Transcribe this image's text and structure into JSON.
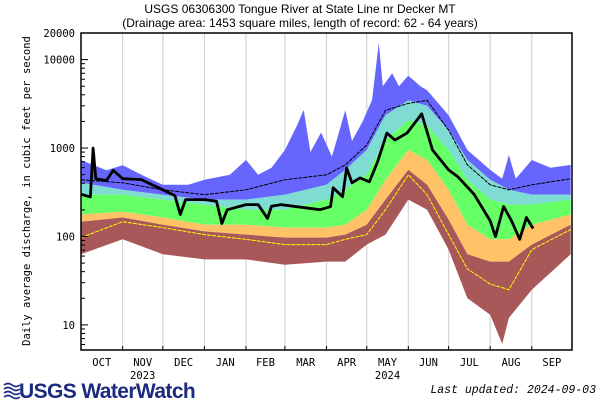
{
  "chart_data": {
    "type": "area",
    "title": "USGS 06306300 Tongue River at State Line nr Decker MT",
    "subtitle": "(Drainage area: 1453 square miles, length of record: 62 - 64 years)",
    "xlabel": "",
    "ylabel": "Daily average discharge, in cubic feet per second",
    "y_scale": "log",
    "ylim": [
      5.2,
      20000
    ],
    "xlim": [
      "2023-10-01",
      "2024-10-01"
    ],
    "y_ticks": [
      {
        "value": 20000,
        "label": "20000"
      },
      {
        "value": 10000,
        "label": "10000"
      },
      {
        "value": 1000,
        "label": "1000"
      },
      {
        "value": 100,
        "label": "100"
      },
      {
        "value": 10,
        "label": "10"
      }
    ],
    "x_ticks": [
      {
        "date": "2023-10-01",
        "label": "OCT"
      },
      {
        "date": "2023-11-01",
        "label": "NOV"
      },
      {
        "date": "2023-12-01",
        "label": "DEC"
      },
      {
        "date": "2024-01-01",
        "label": "JAN"
      },
      {
        "date": "2024-02-01",
        "label": "FEB"
      },
      {
        "date": "2024-03-01",
        "label": "MAR"
      },
      {
        "date": "2024-04-01",
        "label": "APR"
      },
      {
        "date": "2024-05-01",
        "label": "MAY"
      },
      {
        "date": "2024-06-01",
        "label": "JUN"
      },
      {
        "date": "2024-07-01",
        "label": "JUL"
      },
      {
        "date": "2024-08-01",
        "label": "AUG"
      },
      {
        "date": "2024-09-01",
        "label": "SEP"
      }
    ],
    "year_labels": [
      {
        "under": "NOV",
        "label": "2023"
      },
      {
        "under": "MAY",
        "label": "2024"
      }
    ],
    "grid": "vertical month lines",
    "bands": [
      {
        "id": "band_top",
        "color": "#6666ff",
        "upper": "max",
        "lower": "p90"
      },
      {
        "id": "band_upper",
        "color": "#7fdcd2",
        "upper": "p90",
        "lower": "p75"
      },
      {
        "id": "band_mid",
        "color": "#66ff66",
        "upper": "p75",
        "lower": "p25"
      },
      {
        "id": "band_lower",
        "color": "#ffc266",
        "upper": "p25",
        "lower": "p10"
      },
      {
        "id": "band_bottom",
        "color": "#a85858",
        "upper": "p10",
        "lower": "min"
      }
    ],
    "stat_dates": [
      "2023-10-01",
      "2023-11-01",
      "2023-12-01",
      "2024-01-01",
      "2024-02-01",
      "2024-03-01",
      "2024-04-01",
      "2024-04-15",
      "2024-05-01",
      "2024-05-15",
      "2024-06-01",
      "2024-06-15",
      "2024-07-01",
      "2024-07-15",
      "2024-08-01",
      "2024-08-15",
      "2024-09-01",
      "2024-09-30"
    ],
    "stats": {
      "p90": [
        404,
        337,
        297,
        261,
        261,
        297,
        384,
        566,
        951,
        2350,
        3460,
        3000,
        1593,
        733,
        437,
        337,
        297,
        297
      ],
      "p75": [
        297,
        297,
        261,
        229,
        201,
        201,
        261,
        337,
        498,
        1230,
        2065,
        1800,
        951,
        437,
        261,
        229,
        229,
        261
      ],
      "p25": [
        177,
        190,
        164,
        136,
        136,
        126,
        126,
        136,
        201,
        437,
        951,
        733,
        337,
        136,
        93,
        93,
        136,
        177
      ],
      "p10": [
        147,
        164,
        136,
        114,
        105,
        97,
        97,
        105,
        136,
        261,
        566,
        384,
        155,
        63,
        52,
        52,
        81,
        136
      ],
      "yellow_line": [
        97,
        147,
        126,
        105,
        93,
        81,
        81,
        93,
        105,
        201,
        498,
        297,
        105,
        43,
        29,
        25,
        71,
        120
      ],
      "thin_black_line": [
        437,
        404,
        337,
        297,
        337,
        437,
        498,
        644,
        1081,
        2670,
        3200,
        3460,
        1593,
        644,
        384,
        337,
        384,
        450
      ]
    },
    "max": [
      [
        "2023-10-01",
        730
      ],
      [
        "2023-10-20",
        560
      ],
      [
        "2023-11-01",
        640
      ],
      [
        "2023-11-15",
        500
      ],
      [
        "2023-12-01",
        384
      ],
      [
        "2023-12-20",
        384
      ],
      [
        "2024-01-01",
        437
      ],
      [
        "2024-01-20",
        500
      ],
      [
        "2024-02-01",
        733
      ],
      [
        "2024-02-10",
        500
      ],
      [
        "2024-02-20",
        600
      ],
      [
        "2024-03-01",
        951
      ],
      [
        "2024-03-10",
        1800
      ],
      [
        "2024-03-15",
        2700
      ],
      [
        "2024-03-20",
        900
      ],
      [
        "2024-03-28",
        1500
      ],
      [
        "2024-04-05",
        800
      ],
      [
        "2024-04-15",
        2670
      ],
      [
        "2024-04-20",
        1200
      ],
      [
        "2024-04-28",
        2000
      ],
      [
        "2024-05-05",
        3500
      ],
      [
        "2024-05-10",
        15500
      ],
      [
        "2024-05-13",
        5000
      ],
      [
        "2024-05-20",
        7000
      ],
      [
        "2024-05-25",
        5000
      ],
      [
        "2024-06-01",
        6600
      ],
      [
        "2024-06-10",
        5000
      ],
      [
        "2024-06-15",
        4500
      ],
      [
        "2024-07-01",
        2350
      ],
      [
        "2024-07-15",
        951
      ],
      [
        "2024-08-01",
        566
      ],
      [
        "2024-08-10",
        450
      ],
      [
        "2024-08-15",
        834
      ],
      [
        "2024-08-20",
        450
      ],
      [
        "2024-09-01",
        733
      ],
      [
        "2024-09-15",
        600
      ],
      [
        "2024-09-30",
        644
      ]
    ],
    "min": [
      [
        "2023-10-01",
        63
      ],
      [
        "2023-11-01",
        93
      ],
      [
        "2023-12-01",
        63
      ],
      [
        "2024-01-01",
        55
      ],
      [
        "2024-02-01",
        55
      ],
      [
        "2024-03-01",
        48
      ],
      [
        "2024-04-01",
        52
      ],
      [
        "2024-04-15",
        52
      ],
      [
        "2024-05-01",
        81
      ],
      [
        "2024-05-15",
        105
      ],
      [
        "2024-06-01",
        261
      ],
      [
        "2024-06-15",
        201
      ],
      [
        "2024-07-01",
        71
      ],
      [
        "2024-07-15",
        20
      ],
      [
        "2024-08-01",
        13
      ],
      [
        "2024-08-10",
        6.1
      ],
      [
        "2024-08-15",
        12
      ],
      [
        "2024-09-01",
        25
      ],
      [
        "2024-09-30",
        63
      ]
    ],
    "current": [
      [
        "2023-10-01",
        300
      ],
      [
        "2023-10-08",
        280
      ],
      [
        "2023-10-10",
        1000
      ],
      [
        "2023-10-12",
        450
      ],
      [
        "2023-10-20",
        430
      ],
      [
        "2023-10-25",
        560
      ],
      [
        "2023-11-01",
        450
      ],
      [
        "2023-11-15",
        440
      ],
      [
        "2023-12-01",
        337
      ],
      [
        "2023-12-10",
        290
      ],
      [
        "2023-12-14",
        177
      ],
      [
        "2023-12-18",
        261
      ],
      [
        "2024-01-01",
        261
      ],
      [
        "2024-01-10",
        250
      ],
      [
        "2024-01-14",
        140
      ],
      [
        "2024-01-18",
        200
      ],
      [
        "2024-02-01",
        229
      ],
      [
        "2024-02-10",
        229
      ],
      [
        "2024-02-17",
        160
      ],
      [
        "2024-02-20",
        220
      ],
      [
        "2024-02-27",
        229
      ],
      [
        "2024-03-27",
        201
      ],
      [
        "2024-04-04",
        217
      ],
      [
        "2024-04-06",
        355
      ],
      [
        "2024-04-13",
        282
      ],
      [
        "2024-04-16",
        596
      ],
      [
        "2024-04-20",
        405
      ],
      [
        "2024-04-26",
        460
      ],
      [
        "2024-05-03",
        415
      ],
      [
        "2024-05-09",
        696
      ],
      [
        "2024-05-16",
        1477
      ],
      [
        "2024-05-22",
        1230
      ],
      [
        "2024-05-31",
        1477
      ],
      [
        "2024-06-11",
        2430
      ],
      [
        "2024-06-19",
        950
      ],
      [
        "2024-07-01",
        566
      ],
      [
        "2024-07-08",
        472
      ],
      [
        "2024-07-20",
        300
      ],
      [
        "2024-08-01",
        150
      ],
      [
        "2024-08-05",
        100
      ],
      [
        "2024-08-11",
        218
      ],
      [
        "2024-08-17",
        150
      ],
      [
        "2024-08-23",
        93
      ],
      [
        "2024-08-28",
        164
      ],
      [
        "2024-09-02",
        123
      ]
    ],
    "current_color": "#000000",
    "yellow_color": "#ffff00"
  },
  "footer": {
    "logo_text": "USGS WaterWatch",
    "last_updated": "Last updated: 2024-09-03"
  }
}
